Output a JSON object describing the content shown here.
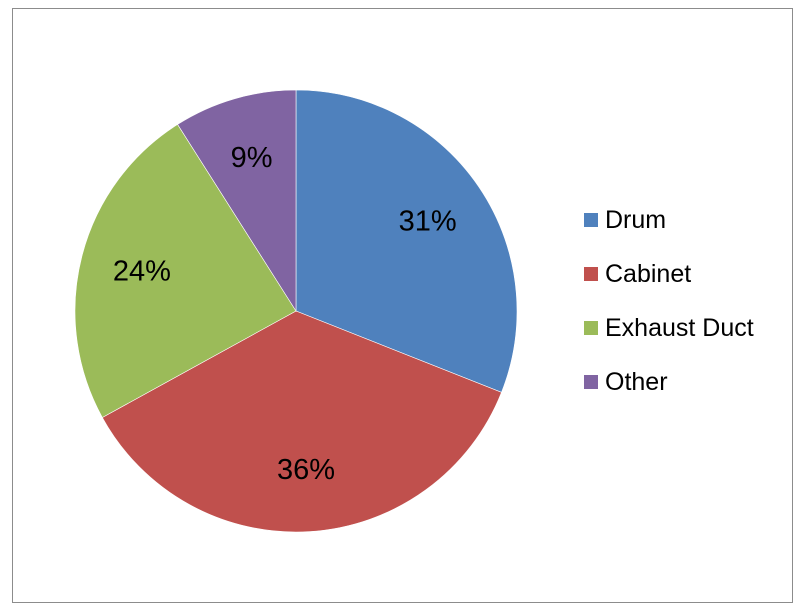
{
  "chart_data": {
    "type": "pie",
    "categories": [
      "Drum",
      "Cabinet",
      "Exhaust Duct",
      "Other"
    ],
    "values": [
      31,
      36,
      24,
      9
    ],
    "data_labels": [
      "31%",
      "36%",
      "24%",
      "9%"
    ],
    "colors": [
      "#4F81BD",
      "#C0504D",
      "#9BBB59",
      "#8064A2"
    ],
    "start_angle_deg": 0,
    "direction": "clockwise",
    "legend_position": "right",
    "title": ""
  }
}
